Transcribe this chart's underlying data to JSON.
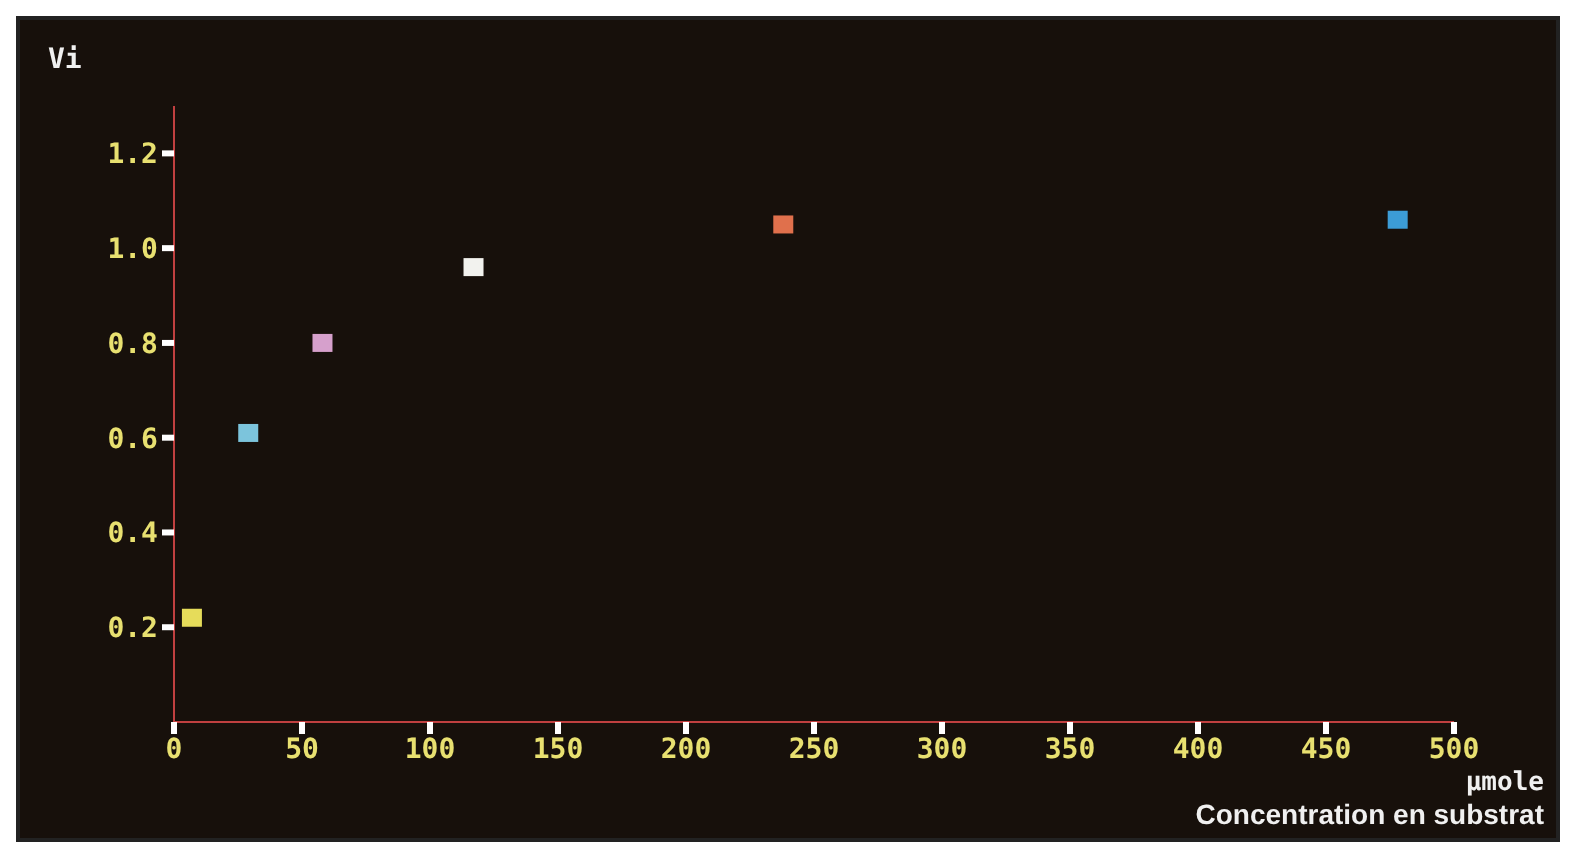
{
  "chart_data": {
    "type": "scatter",
    "ylabel": "Vi",
    "xlabel": "Concentration en substrat",
    "annotations": [
      "µmole"
    ],
    "x": [
      7,
      29,
      58,
      117,
      238,
      478
    ],
    "values": [
      0.22,
      0.61,
      0.8,
      0.96,
      1.05,
      1.06
    ],
    "colors": [
      "#e6dc5a",
      "#7cc4dc",
      "#d6a0cc",
      "#f2f2ee",
      "#e0704c",
      "#3c9cd6"
    ],
    "xlim": [
      0,
      500
    ],
    "xticks": [
      0,
      50,
      100,
      150,
      200,
      250,
      300,
      350,
      400,
      450,
      500
    ],
    "ylim": [
      0,
      1.3
    ],
    "yticks": [
      0.2,
      0.4,
      0.6,
      0.8,
      {
        "value": 1,
        "label": "1.0"
      },
      1.2
    ],
    "marker": "square",
    "grid": false,
    "legend": false
  }
}
